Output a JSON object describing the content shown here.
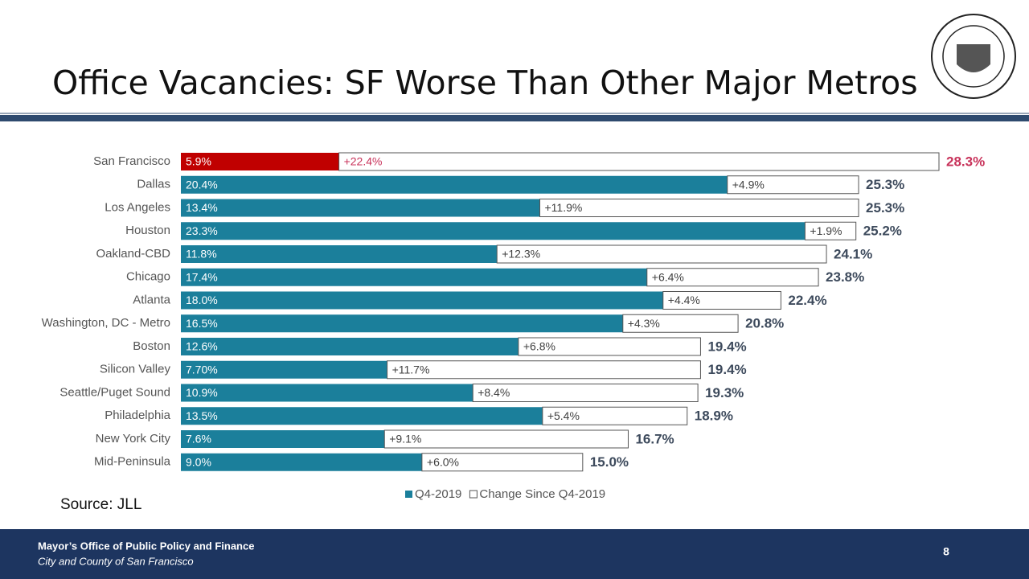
{
  "slide": {
    "title": "Office Vacancies: SF Worse Than Other Major Metros",
    "source": "Source: JLL",
    "footer_line1": "Mayor’s Office of Public Policy and Finance",
    "footer_line2": "City and County of San Francisco",
    "page_number": "8"
  },
  "chart_data": {
    "type": "stacked-bar-horizontal",
    "categories": [
      "San Francisco",
      "Dallas",
      "Los Angeles",
      "Houston",
      "Oakland-CBD",
      "Chicago",
      "Atlanta",
      "Washington, DC - Metro",
      "Boston",
      "Silicon Valley",
      "Seattle/Puget Sound",
      "Philadelphia",
      "New York City",
      "Mid-Peninsula"
    ],
    "series": [
      {
        "name": "Q4-2019",
        "color": "#1b7f9b",
        "colors": [
          "#c00000",
          "#1b7f9b",
          "#1b7f9b",
          "#1b7f9b",
          "#1b7f9b",
          "#1b7f9b",
          "#1b7f9b",
          "#1b7f9b",
          "#1b7f9b",
          "#1b7f9b",
          "#1b7f9b",
          "#1b7f9b",
          "#1b7f9b",
          "#1b7f9b"
        ],
        "values": [
          5.9,
          20.4,
          13.4,
          23.3,
          11.8,
          17.4,
          18.0,
          16.5,
          12.6,
          7.7,
          10.9,
          13.5,
          7.6,
          9.0
        ],
        "value_labels": [
          "5.9%",
          "20.4%",
          "13.4%",
          "23.3%",
          "11.8%",
          "17.4%",
          "18.0%",
          "16.5%",
          "12.6%",
          "7.70%",
          "10.9%",
          "13.5%",
          "7.6%",
          "9.0%"
        ]
      },
      {
        "name": "Change Since Q4-2019",
        "color": "#ffffff",
        "label_colors": [
          "#c8325a",
          "#404040",
          "#404040",
          "#404040",
          "#404040",
          "#404040",
          "#404040",
          "#404040",
          "#404040",
          "#404040",
          "#404040",
          "#404040",
          "#404040",
          "#404040"
        ],
        "values": [
          22.4,
          4.9,
          11.9,
          1.9,
          12.3,
          6.4,
          4.4,
          4.3,
          6.8,
          11.7,
          8.4,
          5.4,
          9.1,
          6.0
        ],
        "value_labels": [
          "+22.4%",
          "+4.9%",
          "+11.9%",
          "+1.9%",
          "+12.3%",
          "+6.4%",
          "+4.4%",
          "+4.3%",
          "+6.8%",
          "+11.7%",
          "+8.4%",
          "+5.4%",
          "+9.1%",
          "+6.0%"
        ]
      }
    ],
    "total_labels": [
      "28.3%",
      "25.3%",
      "25.3%",
      "25.2%",
      "24.1%",
      "23.8%",
      "22.4%",
      "20.8%",
      "19.4%",
      "19.4%",
      "19.3%",
      "18.9%",
      "16.7%",
      "15.0%"
    ],
    "total_label_colors": [
      "#c8325a",
      "#3d4a5c",
      "#3d4a5c",
      "#3d4a5c",
      "#3d4a5c",
      "#3d4a5c",
      "#3d4a5c",
      "#3d4a5c",
      "#3d4a5c",
      "#3d4a5c",
      "#3d4a5c",
      "#3d4a5c",
      "#3d4a5c",
      "#3d4a5c"
    ],
    "legend": "bottom"
  }
}
